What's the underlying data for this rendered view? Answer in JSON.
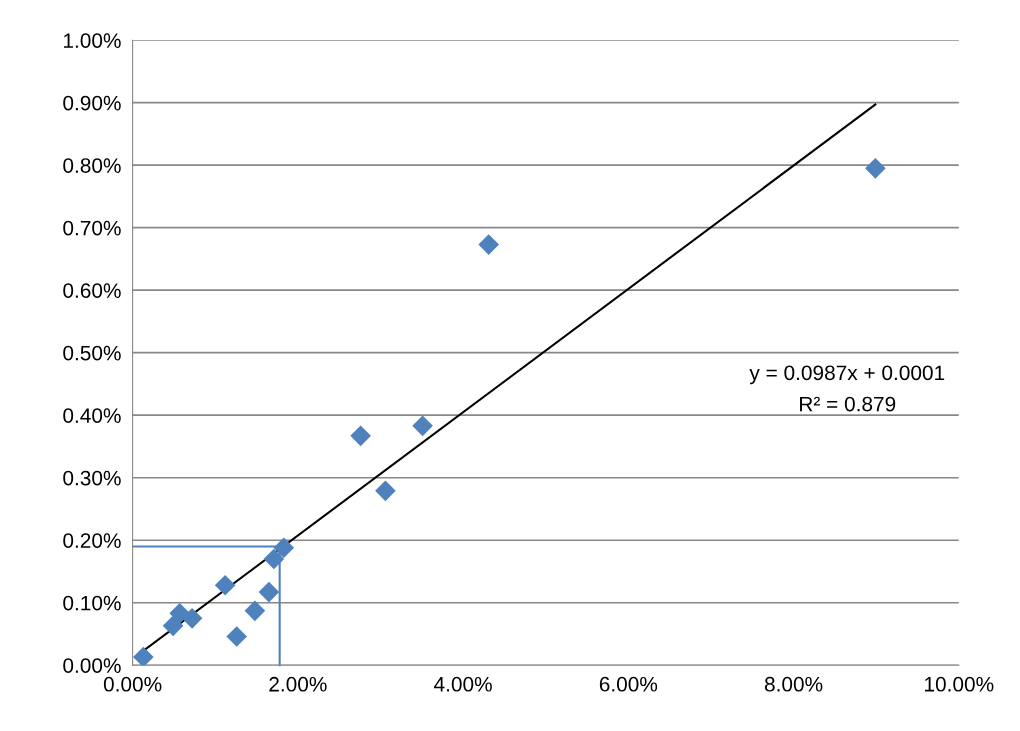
{
  "chart_data": {
    "type": "scatter",
    "marker": "diamond",
    "grid": "y",
    "legend": false,
    "xlim": [
      0,
      10
    ],
    "ylim": [
      0,
      1
    ],
    "xticks": [
      {
        "value": 0,
        "label": "0.00%"
      },
      {
        "value": 2,
        "label": "2.00%"
      },
      {
        "value": 4,
        "label": "4.00%"
      },
      {
        "value": 6,
        "label": "6.00%"
      },
      {
        "value": 8,
        "label": "8.00%"
      },
      {
        "value": 10,
        "label": "10.00%"
      }
    ],
    "yticks": [
      {
        "value": 0,
        "label": "0.00%"
      },
      {
        "value": 0.1,
        "label": "0.10%"
      },
      {
        "value": 0.2,
        "label": "0.20%"
      },
      {
        "value": 0.3,
        "label": "0.30%"
      },
      {
        "value": 0.4,
        "label": "0.40%"
      },
      {
        "value": 0.5,
        "label": "0.50%"
      },
      {
        "value": 0.6,
        "label": "0.60%"
      },
      {
        "value": 0.7,
        "label": "0.70%"
      },
      {
        "value": 0.8,
        "label": "0.80%"
      },
      {
        "value": 0.9,
        "label": "0.90%"
      },
      {
        "value": 1,
        "label": "1.00%"
      }
    ],
    "series": [
      {
        "color": "#4f81bd",
        "x": [
          0.13,
          0.49,
          0.57,
          0.72,
          1.12,
          1.26,
          1.48,
          1.65,
          1.71,
          1.83,
          2.76,
          3.06,
          3.51,
          4.31,
          8.99
        ],
        "values": [
          0.013,
          0.063,
          0.083,
          0.075,
          0.128,
          0.046,
          0.087,
          0.117,
          0.17,
          0.188,
          0.367,
          0.279,
          0.383,
          0.673,
          0.795
        ]
      },
      {
        "type": "line",
        "color": "#000000",
        "marker": "none",
        "x": [
          0.13,
          8.99
        ],
        "values": [
          0.023,
          0.897
        ]
      }
    ],
    "ref_lines": [
      {
        "axis": "x",
        "value": 1.78,
        "color": "#4f81bd"
      },
      {
        "axis": "y",
        "value": 0.19,
        "color": "#4f81bd"
      }
    ],
    "annotations": [
      "y = 0.0987x + 0.0001",
      "R² = 0.879"
    ]
  }
}
